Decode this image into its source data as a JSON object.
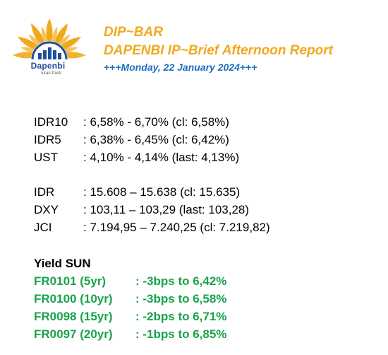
{
  "logo": {
    "name": "Dapenbi",
    "tagline": "Iuran Pasti",
    "icon": "sunburst-logo-icon",
    "colors": {
      "rays": "#f2a81d",
      "bars": "#1f4e9c",
      "text": "#1f4e9c"
    }
  },
  "header": {
    "title": "DIP~BAR",
    "subtitle": "DAPENBI IP~Brief Afternoon Report",
    "date": "+++Monday, 22 January 2024+++"
  },
  "yields": [
    {
      "label": "IDR10",
      "value": ": 6,58% - 6,70% (cl: 6,58%)"
    },
    {
      "label": "IDR5",
      "value": ": 6,38% - 6,45% (cl: 6,42%)"
    },
    {
      "label": "UST",
      "value": ": 4,10% - 4,14% (last: 4,13%)"
    }
  ],
  "markets": [
    {
      "label": "IDR",
      "value": ": 15.608 – 15.638 (cl: 15.635)"
    },
    {
      "label": "DXY",
      "value": ": 103,11 – 103,29 (last: 103,28)"
    },
    {
      "label": "JCI",
      "value": ": 7.194,95 – 7.240,25 (cl: 7.219,82)"
    }
  ],
  "yield_sun": {
    "title": "Yield SUN",
    "items": [
      {
        "label": "FR0101 (5yr)",
        "value": ": -3bps to 6,42%"
      },
      {
        "label": "FR0100 (10yr)",
        "value": ": -3bps to 6,58%"
      },
      {
        "label": "FR0098 (15yr)",
        "value": ": -2bps to 6,71%"
      },
      {
        "label": "FR0097 (20yr)",
        "value": ": -1bps to 6,85%"
      }
    ]
  },
  "colors": {
    "accent_orange": "#f2a81d",
    "accent_blue": "#1f6fbf",
    "positive_green": "#19a34a"
  }
}
